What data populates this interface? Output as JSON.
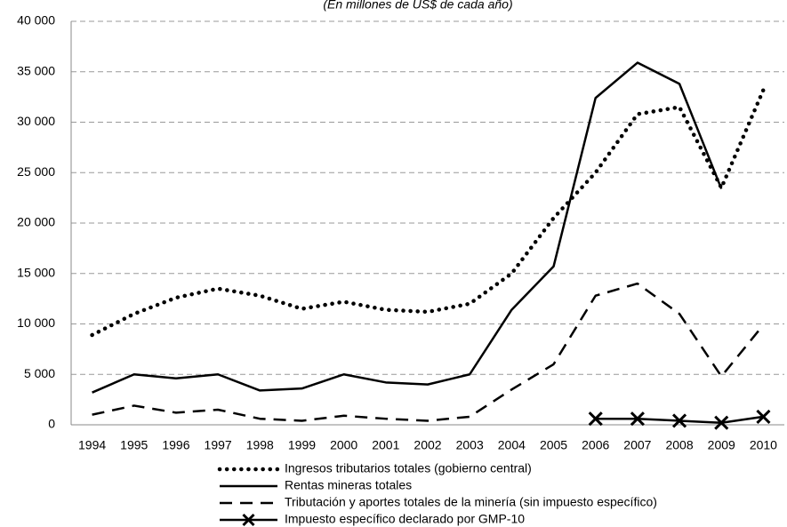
{
  "chart_data": {
    "type": "line",
    "subtitle": "(En millones de US$ de cada año)",
    "categories": [
      "1994",
      "1995",
      "1996",
      "1997",
      "1998",
      "1999",
      "2000",
      "2001",
      "2002",
      "2003",
      "2004",
      "2005",
      "2006",
      "2007",
      "2008",
      "2009",
      "2010"
    ],
    "series": [
      {
        "name": "Ingresos tributarios totales (gobierno central)",
        "color": "#000000",
        "style": "dotted",
        "values": [
          8900,
          11000,
          12600,
          13500,
          12800,
          11500,
          12200,
          11400,
          11200,
          12000,
          15000,
          20500,
          25000,
          30800,
          31500,
          23500,
          33200
        ]
      },
      {
        "name": "Rentas mineras totales",
        "color": "#000000",
        "style": "solid",
        "values": [
          3200,
          5000,
          4600,
          5000,
          3400,
          3600,
          5000,
          4200,
          4000,
          5000,
          11400,
          15700,
          32400,
          35900,
          33800,
          23400,
          null
        ]
      },
      {
        "name": "Tributación y aportes totales de la minería (sin impuesto específico)",
        "color": "#000000",
        "style": "dashed",
        "values": [
          1000,
          1900,
          1200,
          1500,
          600,
          400,
          900,
          600,
          400,
          800,
          3500,
          6000,
          12800,
          14000,
          11000,
          4800,
          9900
        ]
      },
      {
        "name": "Impuesto específico declarado por GMP-10",
        "color": "#000000",
        "style": "cross",
        "values": [
          null,
          null,
          null,
          null,
          null,
          null,
          null,
          null,
          null,
          null,
          null,
          null,
          600,
          600,
          400,
          200,
          800
        ]
      }
    ],
    "ylim": [
      0,
      40000
    ],
    "yticks": [
      0,
      {
        "value": 5000,
        "label": "5 000"
      },
      {
        "value": 10000,
        "label": "10 000"
      },
      {
        "value": 15000,
        "label": "15 000"
      },
      {
        "value": 20000,
        "label": "20 000"
      },
      {
        "value": 25000,
        "label": "25 000"
      },
      {
        "value": 30000,
        "label": "30 000"
      },
      {
        "value": 35000,
        "label": "35 000"
      },
      {
        "value": 40000,
        "label": "40 000"
      }
    ],
    "grid": true
  }
}
